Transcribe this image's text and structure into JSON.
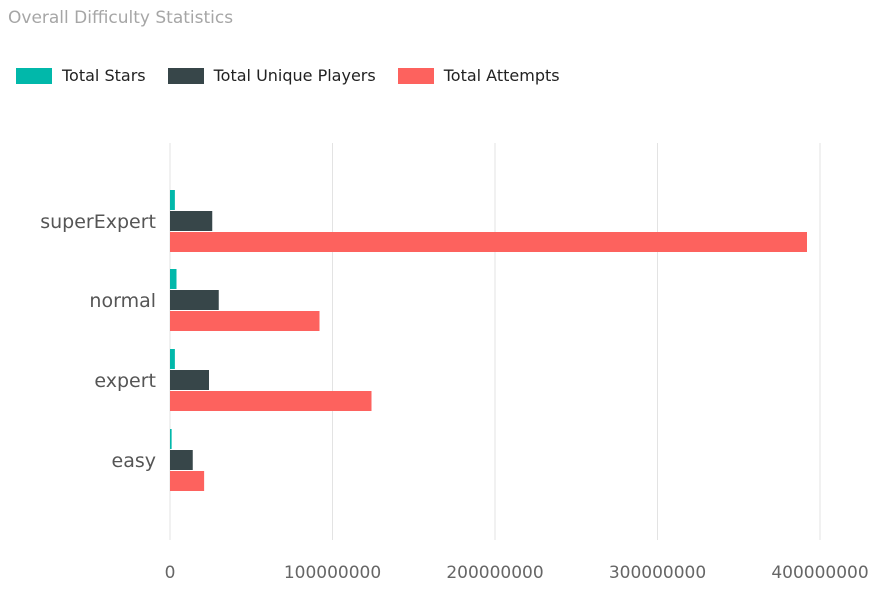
{
  "chart_data": {
    "type": "bar",
    "orientation": "horizontal",
    "title": "Overall Difficulty Statistics",
    "categories": [
      "superExpert",
      "normal",
      "expert",
      "easy"
    ],
    "series": [
      {
        "name": "Total Stars",
        "color": "#01b8aa",
        "values": [
          3000000,
          4000000,
          3000000,
          1000000
        ]
      },
      {
        "name": "Total Unique Players",
        "color": "#374649",
        "values": [
          26000000,
          30000000,
          24000000,
          14000000
        ]
      },
      {
        "name": "Total Attempts",
        "color": "#fd625e",
        "values": [
          392000000,
          92000000,
          124000000,
          21000000
        ]
      }
    ],
    "xlim": [
      0,
      400000000
    ],
    "xticks": [
      0,
      100000000,
      200000000,
      300000000,
      400000000
    ],
    "xtick_labels": [
      "0",
      "100000000",
      "200000000",
      "300000000",
      "400000000"
    ],
    "grid": true,
    "legend_position": "top-left"
  }
}
